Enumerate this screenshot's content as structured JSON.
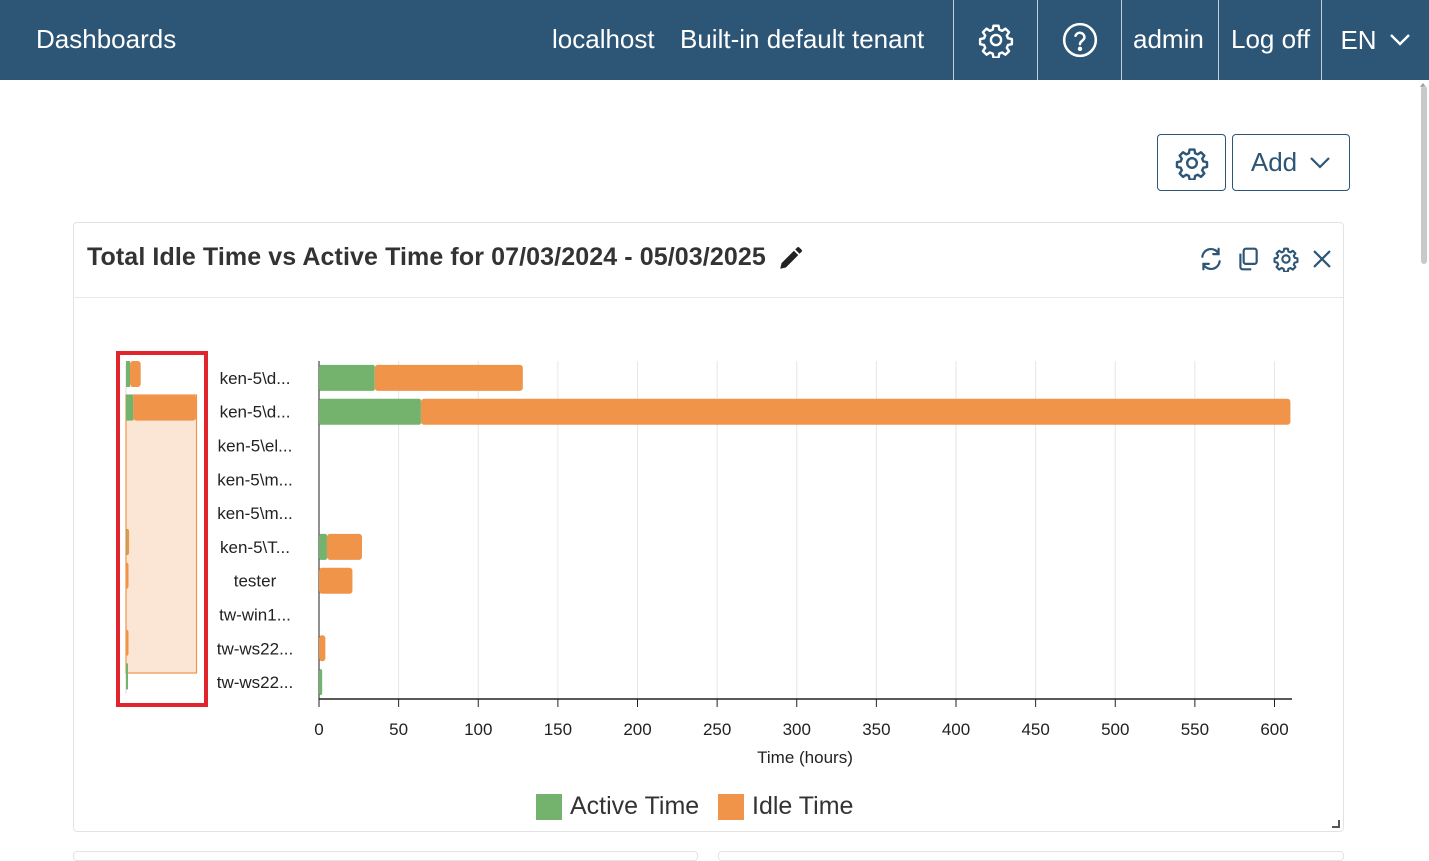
{
  "topbar": {
    "brand": "Dashboards",
    "host": "localhost",
    "tenant": "Built-in default tenant",
    "user": "admin",
    "logoff": "Log off",
    "language": "EN"
  },
  "toolbar": {
    "add_label": "Add"
  },
  "widget": {
    "title": "Total Idle Time vs Active Time for 07/03/2024 - 05/03/2025"
  },
  "colors": {
    "active": "#73b36e",
    "idle": "#f0944a",
    "topbar": "#2d5576",
    "highlight": "#e0242b"
  },
  "chart_data": {
    "type": "bar",
    "orientation": "horizontal",
    "stacked": true,
    "title": "",
    "xlabel": "Time (hours)",
    "ylabel": "",
    "xlim": [
      0,
      610
    ],
    "xticks": [
      0,
      50,
      100,
      150,
      200,
      250,
      300,
      350,
      400,
      450,
      500,
      550,
      600
    ],
    "grid": true,
    "legend_position": "bottom",
    "categories": [
      "ken-5\\d...",
      "ken-5\\d...",
      "ken-5\\el...",
      "ken-5\\m...",
      "ken-5\\m...",
      "ken-5\\T...",
      "tester",
      "tw-win1...",
      "tw-ws22...",
      "tw-ws22..."
    ],
    "series": [
      {
        "name": "Active Time",
        "values": [
          35,
          64,
          0,
          0,
          0,
          5,
          0,
          0,
          0,
          2
        ]
      },
      {
        "name": "Idle Time",
        "values": [
          93,
          546,
          0,
          0,
          0,
          22,
          21,
          0,
          4,
          0
        ]
      }
    ]
  }
}
